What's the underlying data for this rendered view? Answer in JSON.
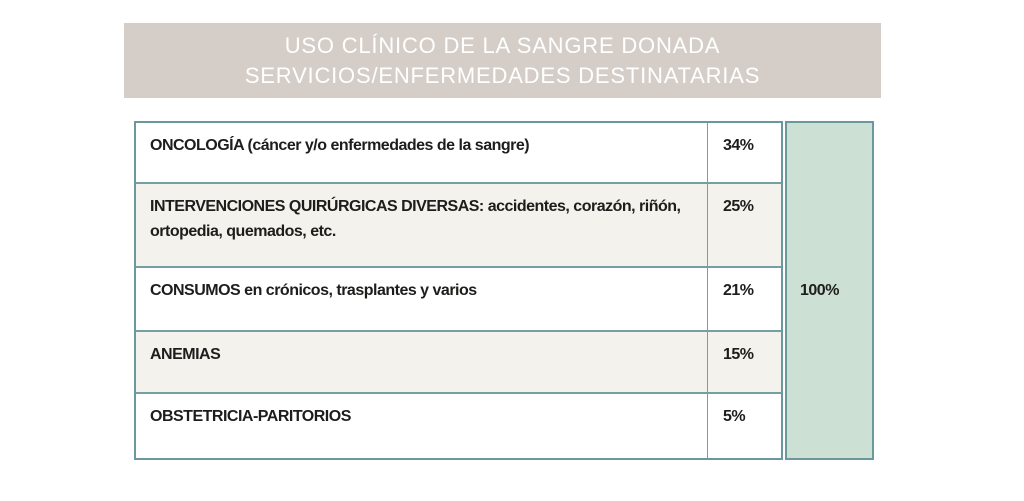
{
  "slide": {
    "title_line1": "USO CLÍNICO DE LA SANGRE DONADA",
    "title_line2": "SERVICIOS/ENFERMEDADES DESTINATARIAS"
  },
  "table": {
    "rows": [
      {
        "label": "ONCOLOGÍA (cáncer y/o enfermedades de la sangre)",
        "value": "34%"
      },
      {
        "label": "INTERVENCIONES QUIRÚRGICAS DIVERSAS: accidentes, corazón, riñón, ortopedia, quemados, etc.",
        "value": "25%"
      },
      {
        "label": "CONSUMOS en crónicos, trasplantes y varios",
        "value": "21%"
      },
      {
        "label": "ANEMIAS",
        "value": "15%"
      },
      {
        "label": "OBSTETRICIA-PARITORIOS",
        "value": "5%"
      }
    ],
    "total_label": "100%"
  },
  "chart_data": {
    "type": "table",
    "title": "USO CLÍNICO DE LA SANGRE DONADA",
    "subtitle": "SERVICIOS/ENFERMEDADES DESTINATARIAS",
    "categories": [
      "ONCOLOGÍA (cáncer y/o enfermedades de la sangre)",
      "INTERVENCIONES QUIRÚRGICAS DIVERSAS: accidentes, corazón, riñón, ortopedia, quemados, etc.",
      "CONSUMOS en crónicos, trasplantes y varios",
      "ANEMIAS",
      "OBSTETRICIA-PARITORIOS"
    ],
    "values": [
      34,
      25,
      21,
      15,
      5
    ],
    "unit": "%",
    "total": 100
  },
  "colors": {
    "header_bg": "#d5cec8",
    "title_text": "#ffffff",
    "border": "#74a0a4",
    "border_strong": "#6b989d",
    "row_bg": "#ffffff",
    "row_alt_bg": "#f4f2ec",
    "total_bg": "#cde0d4",
    "text": "#1d1d1b"
  }
}
